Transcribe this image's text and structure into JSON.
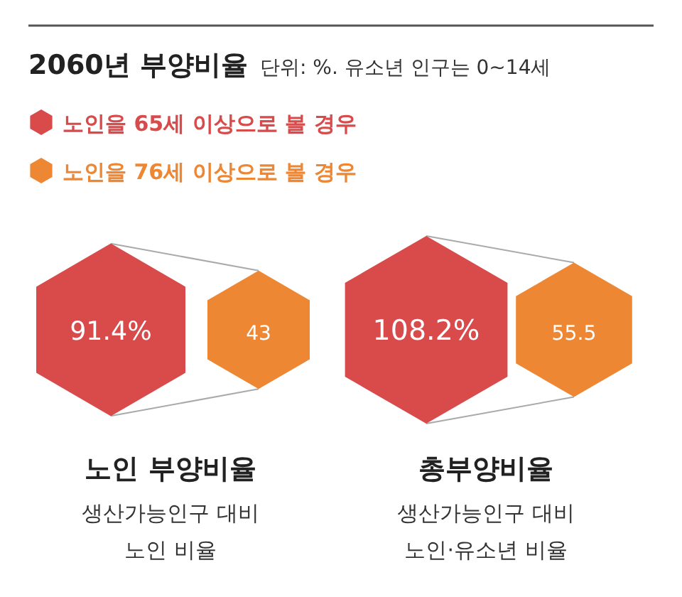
{
  "chart_data": {
    "type": "other",
    "title": "2060년 부양비율",
    "subtitle": "단위: %. 유소년 인구는 0~14세",
    "categories": [
      "노인 부양비율",
      "총부양비율"
    ],
    "annotations": [
      "생산가능인구 대비\n노인 비율",
      "생산가능인구 대비\n노인·유소년 비율"
    ],
    "series": [
      {
        "name": "노인을 65세 이상으로 볼 경우",
        "color": "#d94a4b",
        "values": [
          91.4,
          108.2
        ],
        "value_labels": [
          "91.4%",
          "108.2%"
        ]
      },
      {
        "name": "노인을 76세 이상으로 볼 경우",
        "color": "#ee8734",
        "values": [
          43,
          55.5
        ],
        "value_labels": [
          "43",
          "55.5"
        ]
      }
    ],
    "legend": "top left"
  }
}
